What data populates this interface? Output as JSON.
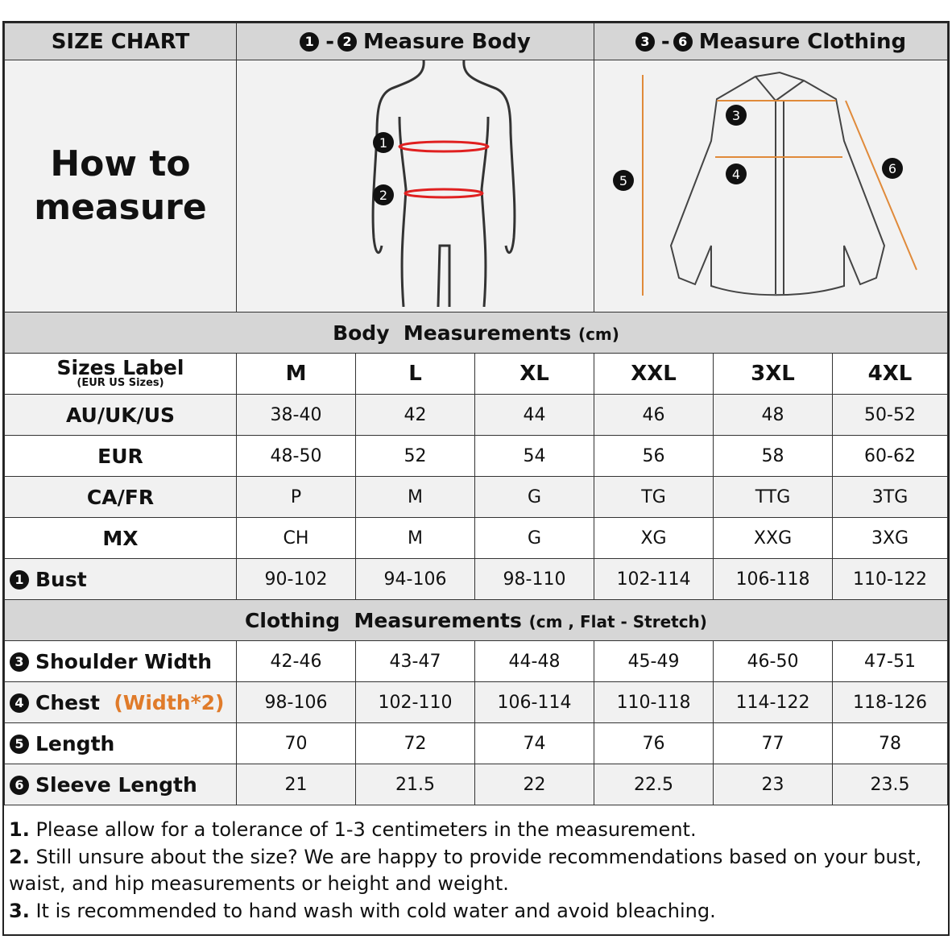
{
  "header": {
    "size_chart": "SIZE CHART",
    "measure_body_nums": [
      "1",
      "2"
    ],
    "measure_body": "Measure Body",
    "measure_clothing_nums": [
      "3",
      "6"
    ],
    "measure_clothing": "Measure Clothing"
  },
  "how_to": {
    "line1": "How to",
    "line2": "measure"
  },
  "body_section": {
    "title": "Body  Measurements",
    "unit": "(cm)"
  },
  "sizes_label": {
    "title": "Sizes Label",
    "sub": "(EUR US Sizes)"
  },
  "sizes": [
    "M",
    "L",
    "XL",
    "XXL",
    "3XL",
    "4XL"
  ],
  "body_rows": [
    {
      "label": "AU/UK/US",
      "values": [
        "38-40",
        "42",
        "44",
        "46",
        "48",
        "50-52"
      ]
    },
    {
      "label": "EUR",
      "values": [
        "48-50",
        "52",
        "54",
        "56",
        "58",
        "60-62"
      ]
    },
    {
      "label": "CA/FR",
      "values": [
        "P",
        "M",
        "G",
        "TG",
        "TTG",
        "3TG"
      ]
    },
    {
      "label": "MX",
      "values": [
        "CH",
        "M",
        "G",
        "XG",
        "XXG",
        "3XG"
      ]
    },
    {
      "num": "1",
      "label": "Bust",
      "values": [
        "90-102",
        "94-106",
        "98-110",
        "102-114",
        "106-118",
        "110-122"
      ]
    }
  ],
  "clothing_section": {
    "title": "Clothing  Measurements",
    "unit": "(cm , Flat - Stretch)"
  },
  "clothing_rows": [
    {
      "num": "3",
      "label": "Shoulder Width",
      "values": [
        "42-46",
        "43-47",
        "44-48",
        "45-49",
        "46-50",
        "47-51"
      ]
    },
    {
      "num": "4",
      "label": "Chest",
      "extra": "(Width*2)",
      "values": [
        "98-106",
        "102-110",
        "106-114",
        "110-118",
        "114-122",
        "118-126"
      ]
    },
    {
      "num": "5",
      "label": "Length",
      "values": [
        "70",
        "72",
        "74",
        "76",
        "77",
        "78"
      ]
    },
    {
      "num": "6",
      "label": "Sleeve Length",
      "values": [
        "21",
        "21.5",
        "22",
        "22.5",
        "23",
        "23.5"
      ]
    }
  ],
  "notes": [
    {
      "n": "1.",
      "text": " Please allow for a tolerance of 1-3 centimeters in the measurement."
    },
    {
      "n": "2.",
      "text": " Still unsure about the size? We are happy to provide recommendations based on your bust, waist, and hip measurements or height and weight."
    },
    {
      "n": "3.",
      "text": " It is recommended to hand wash with cold water and avoid bleaching."
    }
  ],
  "diagram_labels": {
    "body": [
      "1",
      "2"
    ],
    "shirt": [
      "3",
      "4",
      "5",
      "6"
    ]
  },
  "colors": {
    "header_bg": "#d6d6d6",
    "measure_line_body": "#e02020",
    "measure_line_shirt": "#e08a3a",
    "chest_extra": "#e07b2a"
  }
}
